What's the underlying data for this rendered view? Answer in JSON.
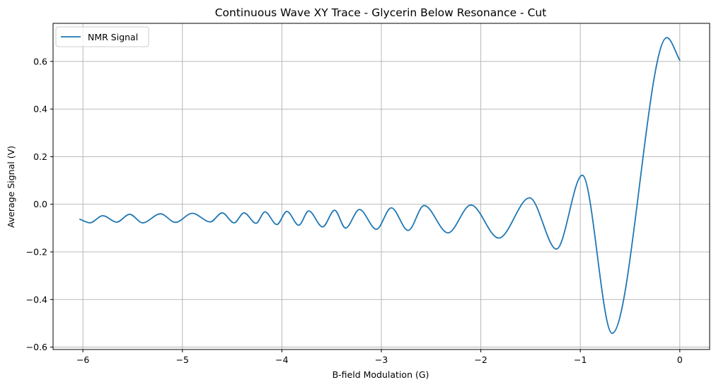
{
  "chart_data": {
    "type": "line",
    "title": "Continuous Wave XY Trace - Glycerin Below Resonance - Cut",
    "xlabel": "B-field Modulation (G)",
    "ylabel": "Average Signal (V)",
    "xlim": [
      -6.3,
      0.3
    ],
    "ylim": [
      -0.61,
      0.76
    ],
    "x_ticks": [
      -6,
      -5,
      -4,
      -3,
      -2,
      -1,
      0
    ],
    "x_tick_labels": [
      "−6",
      "−5",
      "−4",
      "−3",
      "−2",
      "−1",
      "0"
    ],
    "y_ticks": [
      -0.6,
      -0.4,
      -0.2,
      0.0,
      0.2,
      0.4,
      0.6
    ],
    "y_tick_labels": [
      "−0.6",
      "−0.4",
      "−0.2",
      "0.0",
      "0.2",
      "0.4",
      "0.6"
    ],
    "grid": true,
    "legend": {
      "position": "top-left",
      "entries": [
        "NMR Signal"
      ]
    },
    "colors": {
      "series": "#1f77b4",
      "grid": "#b0b0b0"
    },
    "series": [
      {
        "name": "NMR Signal",
        "points": [
          [
            -6.03,
            -0.063
          ],
          [
            -5.93,
            -0.078
          ],
          [
            -5.8,
            -0.048
          ],
          [
            -5.66,
            -0.075
          ],
          [
            -5.53,
            -0.042
          ],
          [
            -5.4,
            -0.078
          ],
          [
            -5.22,
            -0.04
          ],
          [
            -5.07,
            -0.076
          ],
          [
            -4.9,
            -0.038
          ],
          [
            -4.72,
            -0.074
          ],
          [
            -4.6,
            -0.036
          ],
          [
            -4.48,
            -0.078
          ],
          [
            -4.38,
            -0.036
          ],
          [
            -4.26,
            -0.08
          ],
          [
            -4.17,
            -0.032
          ],
          [
            -4.05,
            -0.085
          ],
          [
            -3.95,
            -0.03
          ],
          [
            -3.83,
            -0.088
          ],
          [
            -3.73,
            -0.028
          ],
          [
            -3.59,
            -0.095
          ],
          [
            -3.47,
            -0.025
          ],
          [
            -3.36,
            -0.1
          ],
          [
            -3.22,
            -0.022
          ],
          [
            -3.05,
            -0.105
          ],
          [
            -2.9,
            -0.015
          ],
          [
            -2.73,
            -0.11
          ],
          [
            -2.57,
            -0.005
          ],
          [
            -2.33,
            -0.12
          ],
          [
            -2.1,
            -0.003
          ],
          [
            -1.82,
            -0.142
          ],
          [
            -1.51,
            0.027
          ],
          [
            -1.24,
            -0.188
          ],
          [
            -0.98,
            0.122
          ],
          [
            -0.68,
            -0.542
          ],
          [
            -0.13,
            0.7
          ],
          [
            0.0,
            0.605
          ]
        ]
      }
    ]
  }
}
